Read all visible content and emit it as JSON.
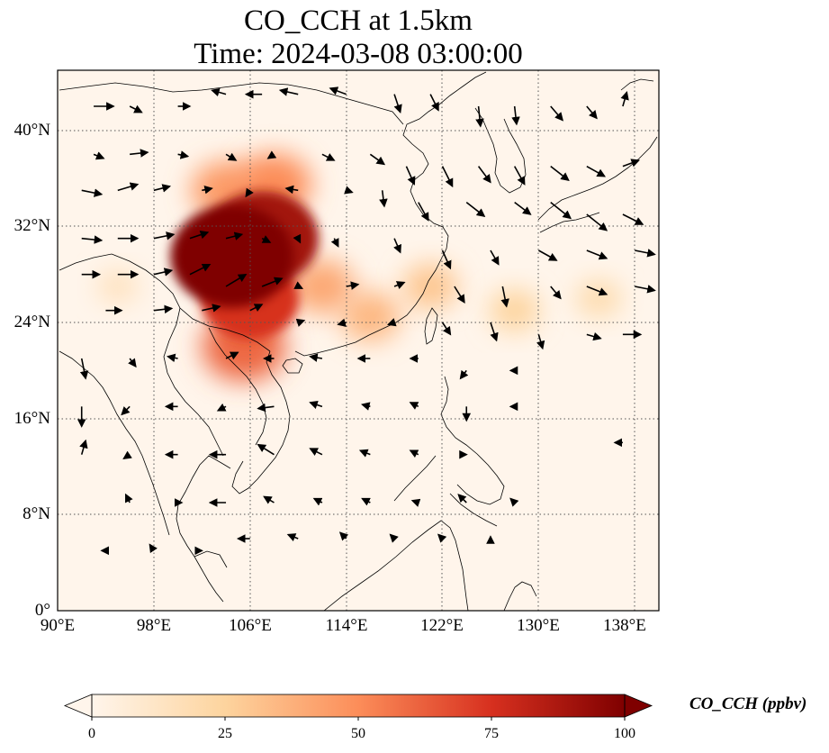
{
  "title": {
    "line1": "CO_CCH at 1.5km",
    "line2": "Time: 2024-03-08 03:00:00"
  },
  "axes": {
    "lat_ticks": [
      "0°",
      "8°N",
      "16°N",
      "24°N",
      "32°N",
      "40°N"
    ],
    "lon_ticks": [
      "90°E",
      "98°E",
      "106°E",
      "114°E",
      "122°E",
      "130°E",
      "138°E"
    ]
  },
  "colorbar": {
    "label": "CO_CCH (ppbv)",
    "ticks": [
      "0",
      "25",
      "50",
      "75",
      "100"
    ],
    "colors": [
      "#fff5eb",
      "#fdd49e",
      "#fc8d59",
      "#d7301f",
      "#7f0000"
    ]
  },
  "chart_data": {
    "type": "heatmap",
    "title": "CO_CCH at 1.5km",
    "subtitle": "Time: 2024-03-08 03:00:00",
    "variable": "CO_CCH",
    "units": "ppbv",
    "lon_range": [
      90,
      140
    ],
    "lat_range": [
      0,
      45
    ],
    "value_range": [
      0,
      100
    ],
    "extend": "both",
    "grid": true,
    "overlay": "wind vectors",
    "plumes": [
      {
        "lon": 104.5,
        "lat": 29.5,
        "value": 100
      },
      {
        "lon": 107,
        "lat": 31,
        "value": 90
      },
      {
        "lon": 106,
        "lat": 26,
        "value": 75
      },
      {
        "lon": 105.5,
        "lat": 22,
        "value": 60
      },
      {
        "lon": 104,
        "lat": 35,
        "value": 45
      },
      {
        "lon": 108,
        "lat": 35.5,
        "value": 50
      },
      {
        "lon": 112,
        "lat": 27,
        "value": 40
      },
      {
        "lon": 116,
        "lat": 24.5,
        "value": 35
      },
      {
        "lon": 121,
        "lat": 27,
        "value": 30
      },
      {
        "lon": 128,
        "lat": 25,
        "value": 25
      },
      {
        "lon": 135,
        "lat": 26,
        "value": 20
      },
      {
        "lon": 95,
        "lat": 27,
        "value": 15
      }
    ],
    "winds": [
      [
        93,
        42,
        1,
        0
      ],
      [
        96,
        42,
        0.6,
        -0.3
      ],
      [
        100,
        42,
        0.6,
        0
      ],
      [
        104,
        43,
        -0.7,
        0.2
      ],
      [
        107,
        43,
        -0.8,
        0
      ],
      [
        110,
        43,
        -0.9,
        0.2
      ],
      [
        114,
        43,
        -0.8,
        0.3
      ],
      [
        118,
        43,
        0.3,
        -0.9
      ],
      [
        121,
        43,
        0.4,
        -0.8
      ],
      [
        125,
        42,
        0.1,
        -1
      ],
      [
        128,
        42,
        0.1,
        -0.9
      ],
      [
        131,
        42,
        0.6,
        -0.7
      ],
      [
        134,
        42,
        0.5,
        -0.6
      ],
      [
        137,
        42,
        0.2,
        0.7
      ],
      [
        93,
        38,
        0.5,
        -0.2
      ],
      [
        96,
        38,
        0.9,
        0.1
      ],
      [
        100,
        38,
        0.5,
        -0.1
      ],
      [
        104,
        38,
        0.5,
        -0.3
      ],
      [
        108,
        38,
        -0.3,
        -0.2
      ],
      [
        112,
        38,
        0.6,
        -0.3
      ],
      [
        116,
        38,
        0.7,
        -0.5
      ],
      [
        119,
        37,
        0.4,
        -0.9
      ],
      [
        122,
        37,
        0.5,
        -1
      ],
      [
        125,
        37,
        0.6,
        -0.8
      ],
      [
        128,
        37,
        0.5,
        -0.9
      ],
      [
        131,
        37,
        0.9,
        -0.7
      ],
      [
        134,
        37,
        0.9,
        -0.5
      ],
      [
        137,
        37,
        0.8,
        0.3
      ],
      [
        92,
        35,
        1,
        -0.2
      ],
      [
        95,
        35,
        1,
        0.3
      ],
      [
        98,
        35,
        0.8,
        0.2
      ],
      [
        102,
        35,
        0.5,
        0.1
      ],
      [
        106,
        35,
        -0.2,
        -0.3
      ],
      [
        110,
        35,
        -0.6,
        0.1
      ],
      [
        114,
        35,
        0.3,
        -0.1
      ],
      [
        117,
        35,
        0.1,
        -0.8
      ],
      [
        120,
        34,
        0.5,
        -0.9
      ],
      [
        124,
        34,
        0.9,
        -0.7
      ],
      [
        128,
        34,
        0.8,
        -0.6
      ],
      [
        131,
        34,
        1,
        -0.8
      ],
      [
        134,
        33,
        1,
        -0.8
      ],
      [
        137,
        33,
        1,
        -0.5
      ],
      [
        92,
        31,
        1,
        -0.1
      ],
      [
        95,
        31,
        1,
        0
      ],
      [
        98,
        31,
        1,
        0.2
      ],
      [
        101,
        31,
        0.9,
        0.3
      ],
      [
        104,
        31,
        0.8,
        0.2
      ],
      [
        107,
        31,
        0.4,
        -0.2
      ],
      [
        110,
        31,
        0.1,
        -0.2
      ],
      [
        113,
        31,
        0.2,
        -0.4
      ],
      [
        118,
        31,
        0.3,
        -0.7
      ],
      [
        122,
        30,
        0.4,
        -0.9
      ],
      [
        126,
        30,
        0.4,
        -0.7
      ],
      [
        130,
        30,
        0.9,
        -0.5
      ],
      [
        134,
        30,
        1,
        -0.4
      ],
      [
        138,
        30,
        1,
        -0.2
      ],
      [
        92,
        28,
        0.9,
        0
      ],
      [
        95,
        28,
        1,
        0
      ],
      [
        98,
        28,
        0.9,
        0.2
      ],
      [
        101,
        28,
        1,
        0.5
      ],
      [
        104,
        27,
        1,
        0.6
      ],
      [
        107,
        27,
        1,
        0.4
      ],
      [
        110,
        27,
        0.2,
        -0.1
      ],
      [
        114,
        27,
        0.6,
        0.1
      ],
      [
        118,
        27,
        0.5,
        0.2
      ],
      [
        123,
        27,
        0.5,
        -0.8
      ],
      [
        127,
        27,
        0.2,
        -1
      ],
      [
        131,
        27,
        0.5,
        -0.6
      ],
      [
        134,
        27,
        1,
        -0.4
      ],
      [
        138,
        27,
        1,
        -0.2
      ],
      [
        94,
        25,
        0.8,
        0
      ],
      [
        98,
        25,
        0.9,
        0.1
      ],
      [
        102,
        25,
        0.9,
        0.2
      ],
      [
        106,
        25,
        0.6,
        0.3
      ],
      [
        110,
        24,
        0.3,
        0.1
      ],
      [
        114,
        24,
        -0.4,
        -0.1
      ],
      [
        118,
        24,
        -0.3,
        -0.1
      ],
      [
        122,
        24,
        0.4,
        -0.6
      ],
      [
        126,
        24,
        0.3,
        -0.9
      ],
      [
        130,
        23,
        0.2,
        -0.7
      ],
      [
        134,
        23,
        0.7,
        -0.2
      ],
      [
        137,
        23,
        0.9,
        0
      ],
      [
        92,
        21,
        0.2,
        -1
      ],
      [
        96,
        21,
        0.3,
        -0.4
      ],
      [
        100,
        21,
        -0.5,
        0.1
      ],
      [
        104,
        21,
        0.6,
        0.3
      ],
      [
        108,
        21,
        -0.5,
        0
      ],
      [
        112,
        21,
        -0.6,
        0.1
      ],
      [
        116,
        21,
        -0.6,
        0
      ],
      [
        120,
        21,
        -0.4,
        0
      ],
      [
        124,
        20,
        -0.3,
        -0.4
      ],
      [
        128,
        20,
        -0.2,
        0
      ],
      [
        92,
        17,
        0,
        -1
      ],
      [
        96,
        17,
        -0.4,
        -0.4
      ],
      [
        100,
        17,
        -0.6,
        0
      ],
      [
        104,
        17,
        -0.4,
        -0.2
      ],
      [
        108,
        17,
        -0.8,
        -0.1
      ],
      [
        112,
        17,
        -0.6,
        0.2
      ],
      [
        116,
        17,
        -0.4,
        0.1
      ],
      [
        120,
        17,
        -0.4,
        0.2
      ],
      [
        124,
        17,
        0,
        -0.7
      ],
      [
        128,
        17,
        -0.2,
        0
      ],
      [
        92,
        13,
        0.2,
        0.7
      ],
      [
        96,
        13,
        -0.3,
        -0.2
      ],
      [
        100,
        13,
        -0.6,
        0
      ],
      [
        104,
        13,
        -0.8,
        0
      ],
      [
        108,
        13,
        -0.8,
        0.5
      ],
      [
        112,
        13,
        -0.6,
        0.3
      ],
      [
        116,
        13,
        -0.5,
        0.2
      ],
      [
        120,
        13,
        -0.4,
        0.2
      ],
      [
        124,
        13,
        0,
        0
      ],
      [
        137,
        14,
        -0.4,
        0
      ],
      [
        96,
        9,
        -0.2,
        0.4
      ],
      [
        100,
        9,
        0.2,
        0
      ],
      [
        104,
        9,
        -0.8,
        0
      ],
      [
        108,
        9,
        -0.5,
        0.3
      ],
      [
        112,
        9,
        -0.4,
        0.2
      ],
      [
        116,
        9,
        -0.4,
        0.2
      ],
      [
        120,
        9,
        -0.3,
        0.1
      ],
      [
        124,
        9,
        -0.4,
        0.4
      ],
      [
        128,
        9,
        -0.2,
        0.2
      ],
      [
        94,
        5,
        -0.2,
        0
      ],
      [
        98,
        5,
        -0.2,
        0.3
      ],
      [
        102,
        5,
        0,
        0
      ],
      [
        106,
        6,
        -0.6,
        0
      ],
      [
        110,
        6,
        -0.5,
        0.2
      ],
      [
        114,
        6,
        -0.3,
        0.3
      ],
      [
        118,
        6,
        -0.2,
        0.2
      ],
      [
        122,
        6,
        -0.2,
        0.2
      ],
      [
        126,
        6,
        0,
        0.1
      ]
    ]
  }
}
